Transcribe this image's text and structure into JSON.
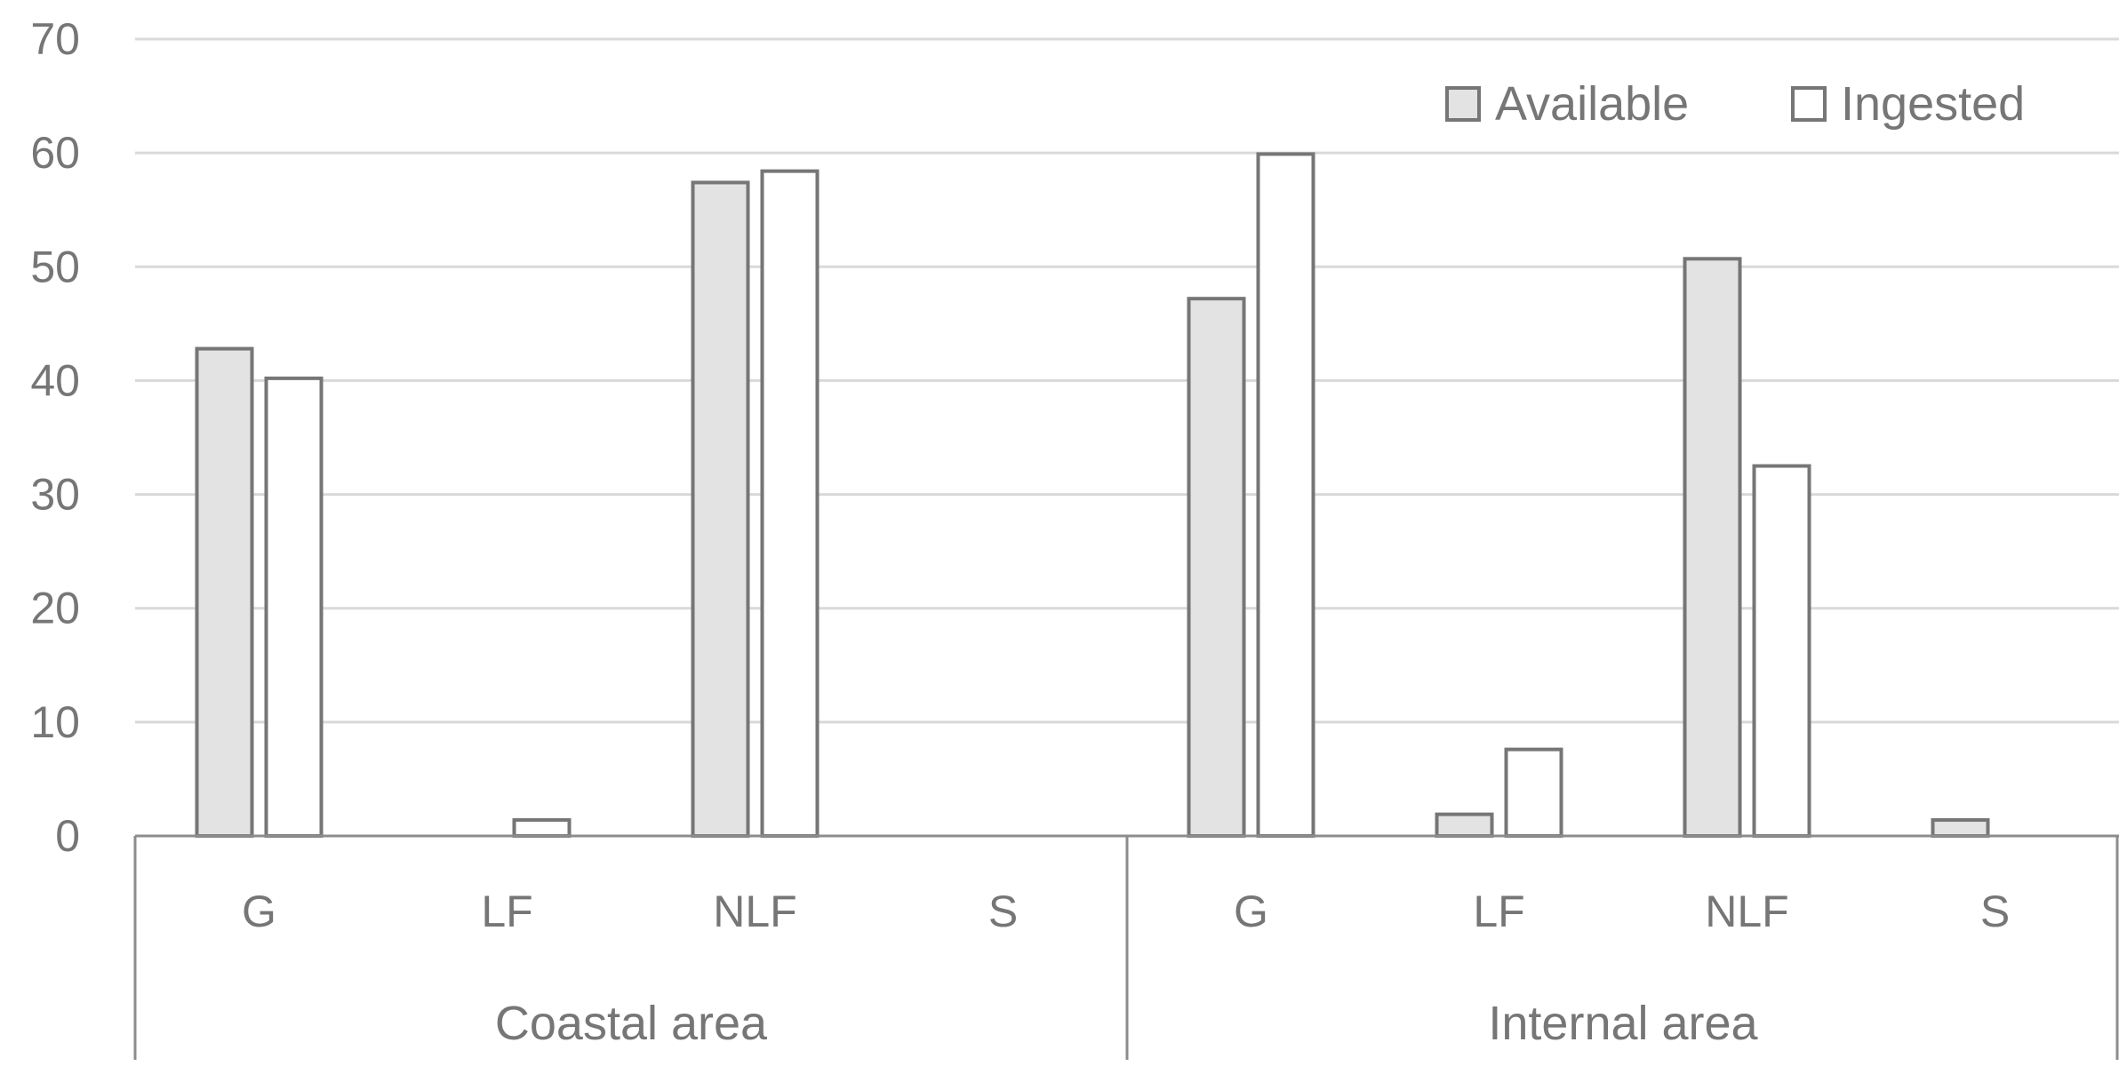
{
  "chart_data": {
    "type": "bar",
    "title": "",
    "xlabel": "",
    "ylabel": "",
    "ylim": [
      0,
      70
    ],
    "yticks": [
      0,
      10,
      20,
      30,
      40,
      50,
      60,
      70
    ],
    "grid": true,
    "legend_position": "top-right",
    "groups": [
      {
        "label": "Coastal area",
        "categories": [
          "G",
          "LF",
          "NLF",
          "S"
        ]
      },
      {
        "label": "Internal area",
        "categories": [
          "G",
          "LF",
          "NLF",
          "S"
        ]
      }
    ],
    "series": [
      {
        "name": "Available",
        "color": "#e3e3e3",
        "values": [
          42.8,
          0,
          57.4,
          0,
          47.2,
          1.9,
          50.7,
          1.4
        ]
      },
      {
        "name": "Ingested",
        "color": "#ffffff",
        "values": [
          40.2,
          1.4,
          58.4,
          0,
          59.9,
          7.6,
          32.5,
          0
        ]
      }
    ],
    "colors": {
      "bar_stroke": "#767676",
      "grid": "#d9d9d9",
      "axis": "#8c8c8c",
      "text": "#767676"
    }
  }
}
